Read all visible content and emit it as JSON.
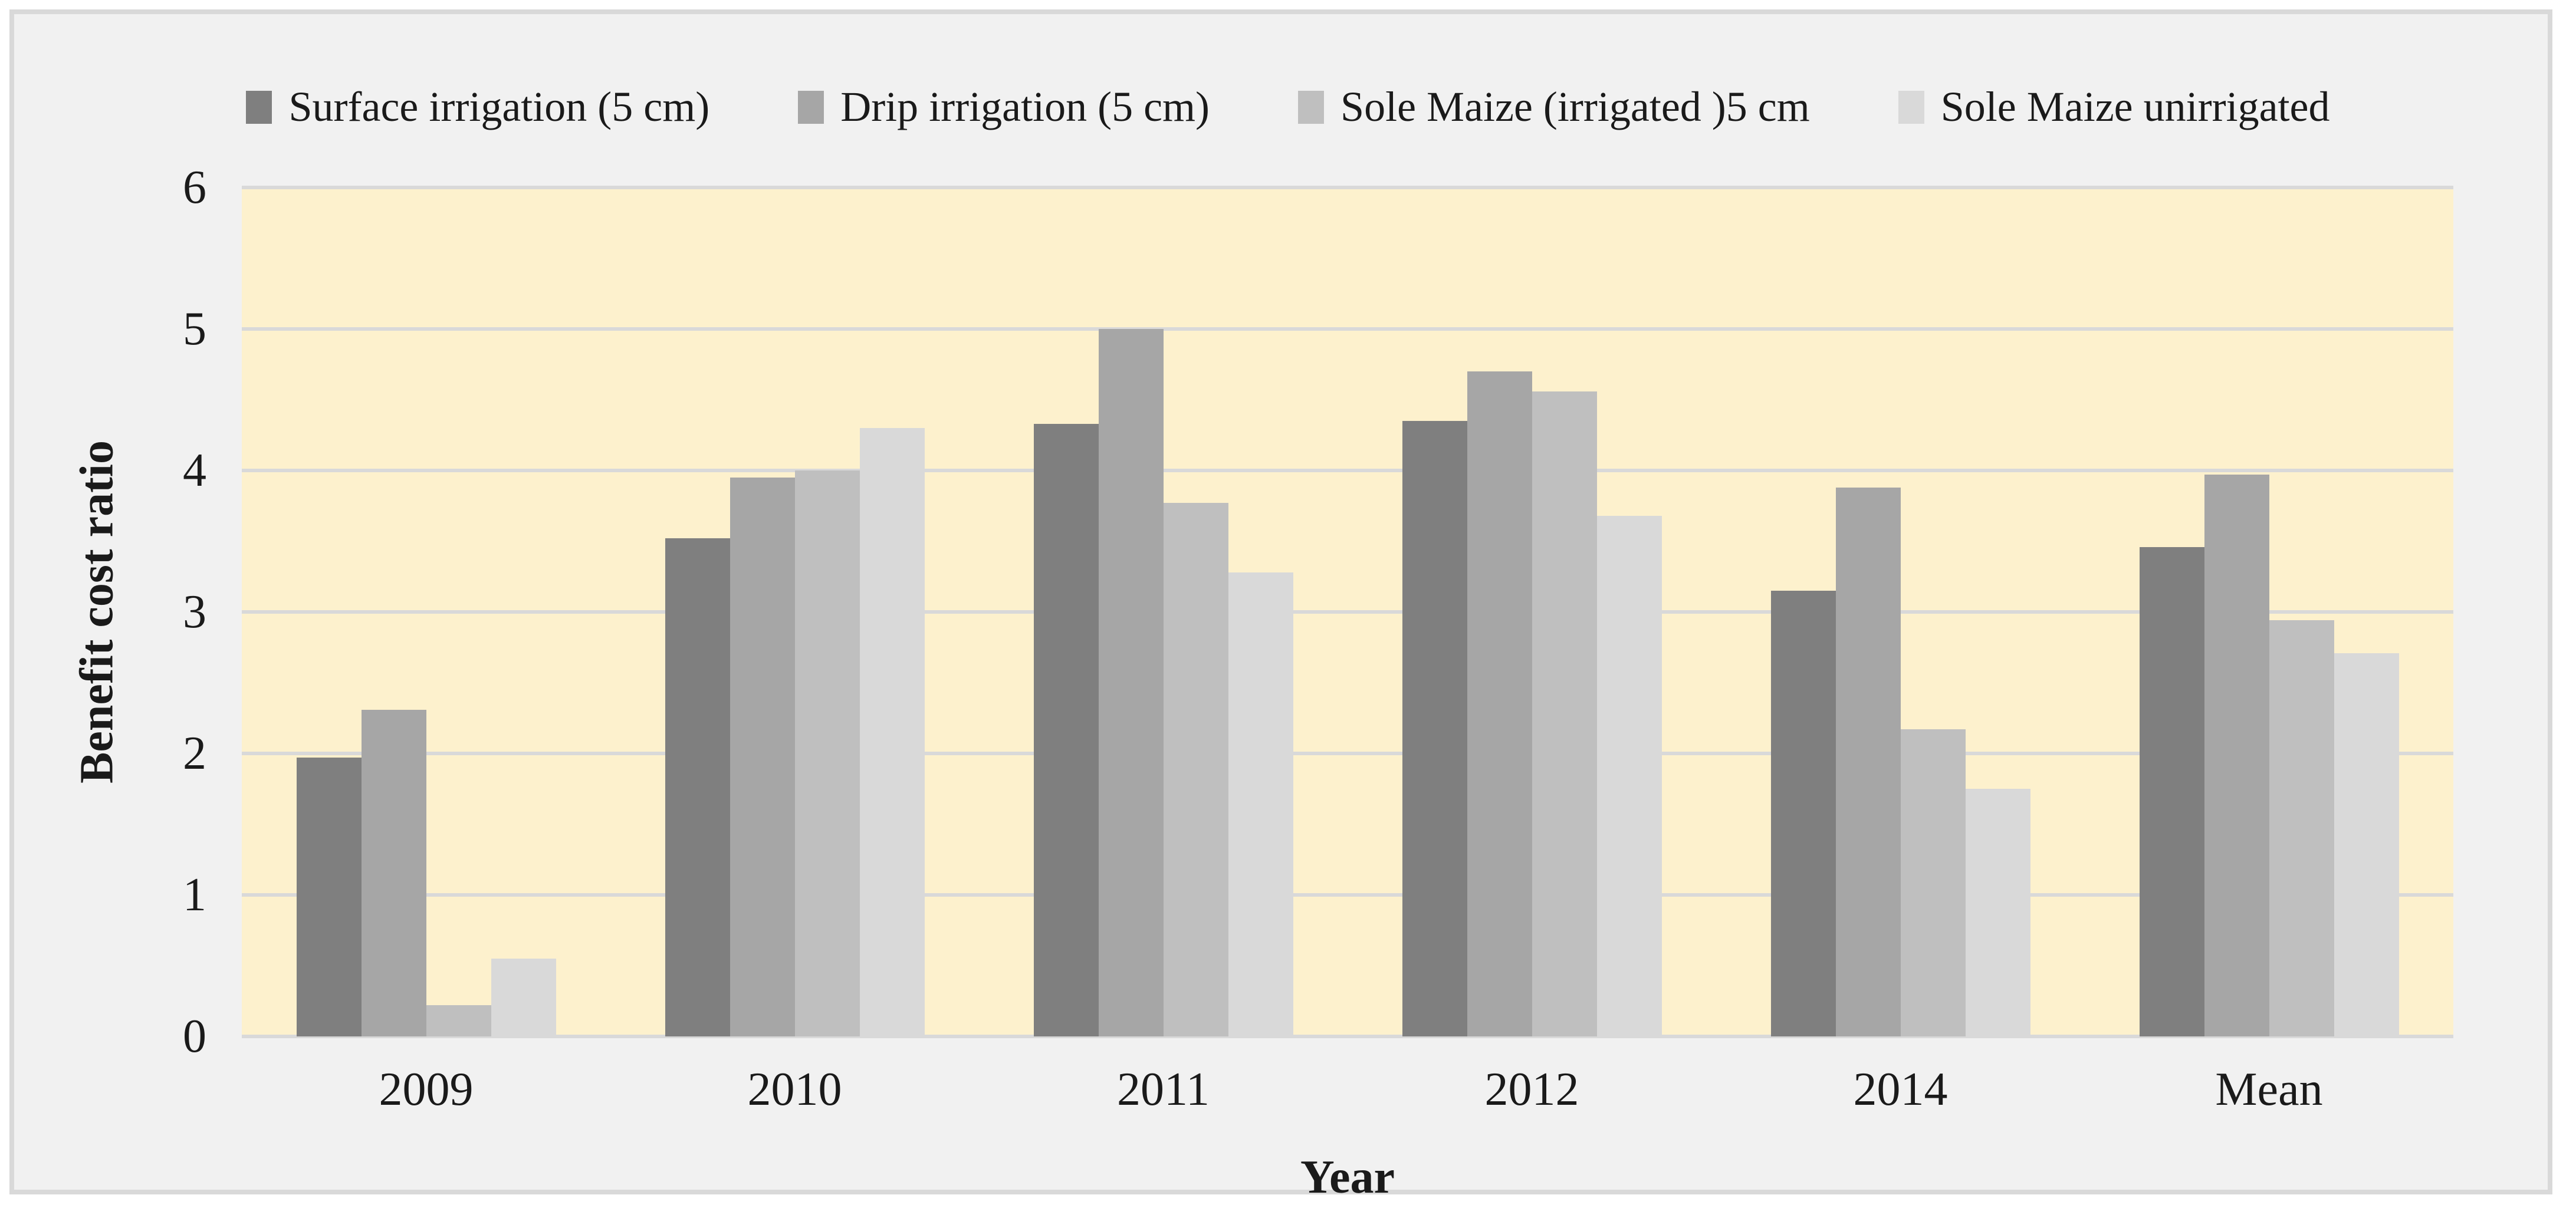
{
  "figure": {
    "colors": {
      "canvas_bg": "#ffffff",
      "frame_bg": "#f1f1f1",
      "frame_border": "#d9d9d9",
      "plot_bg": "#fdf1cd",
      "gridline": "#d9d9d9",
      "text": "#1a1a1a"
    }
  },
  "axes": {
    "y": {
      "title": "Benefit cost ratio"
    },
    "x": {
      "title": "Year"
    }
  },
  "chart_data": {
    "type": "bar",
    "title": "",
    "xlabel": "Year",
    "ylabel": "Benefit cost ratio",
    "categories": [
      "2009",
      "2010",
      "2011",
      "2012",
      "2014",
      "Mean"
    ],
    "series": [
      {
        "name": "Surface irrigation (5 cm)",
        "color": "#7f7f7f",
        "values": [
          1.97,
          3.52,
          4.33,
          4.35,
          3.15,
          3.46
        ]
      },
      {
        "name": "Drip irrigation (5 cm)",
        "color": "#a6a6a6",
        "values": [
          2.31,
          3.95,
          5.0,
          4.7,
          3.88,
          3.97
        ]
      },
      {
        "name": "Sole Maize (irrigated )5 cm",
        "color": "#bfbfbf",
        "values": [
          0.22,
          4.0,
          3.77,
          4.56,
          2.17,
          2.94
        ]
      },
      {
        "name": "Sole Maize unirrigated",
        "color": "#d9d9d9",
        "values": [
          0.55,
          4.3,
          3.28,
          3.68,
          1.75,
          2.71
        ]
      }
    ],
    "ylim": [
      0,
      6
    ],
    "y_ticks": [
      0,
      1,
      2,
      3,
      4,
      5,
      6
    ],
    "grid": true,
    "legend_position": "top"
  }
}
